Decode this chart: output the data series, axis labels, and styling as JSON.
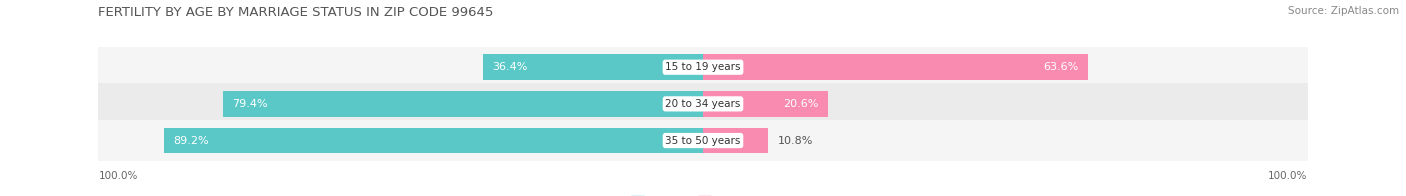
{
  "title": "Female Fertility by Age by Marriage Status in Zip Code 99645",
  "title_display": "FERTILITY BY AGE BY MARRIAGE STATUS IN ZIP CODE 99645",
  "source": "Source: ZipAtlas.com",
  "categories": [
    "15 to 19 years",
    "20 to 34 years",
    "35 to 50 years"
  ],
  "married_pct": [
    36.4,
    79.4,
    89.2
  ],
  "unmarried_pct": [
    63.6,
    20.6,
    10.8
  ],
  "married_color": "#5BC8C8",
  "unmarried_color": "#F98BB0",
  "title_color": "#555555",
  "axis_label_left": "100.0%",
  "axis_label_right": "100.0%",
  "title_fontsize": 9.5,
  "source_fontsize": 7.5,
  "bar_label_fontsize": 8,
  "category_fontsize": 7.5,
  "legend_fontsize": 8,
  "background_color": "#FFFFFF",
  "row_colors": [
    "#F5F5F5",
    "#EBEBEB",
    "#F5F5F5"
  ]
}
